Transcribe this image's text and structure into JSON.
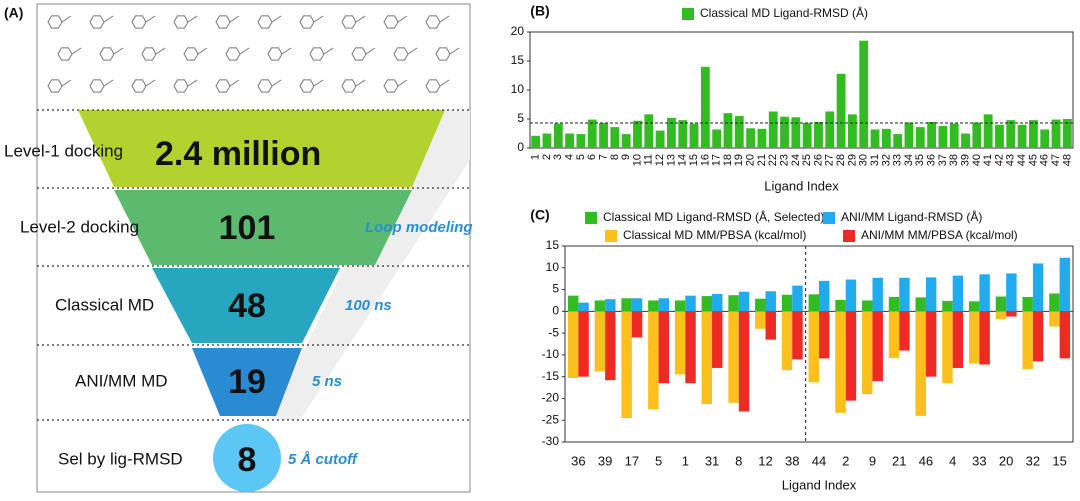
{
  "funnel": {
    "panel_label": "(A)",
    "stages": [
      {
        "label": "Level-1 docking",
        "count": "2.4 million"
      },
      {
        "label": "Level-2 docking",
        "count": "101",
        "note": "Loop modeling"
      },
      {
        "label": "Classical MD",
        "count": "48",
        "note": "100 ns"
      },
      {
        "label": "ANI/MM MD",
        "count": "19",
        "note": "5 ns"
      },
      {
        "label": "Sel by lig-RMSD",
        "count": "8",
        "note": "5 Å cutoff"
      }
    ]
  },
  "chart_data": [
    {
      "type": "bar",
      "title": "(B)",
      "x_label": "Ligand Index",
      "categories": [
        "1",
        "2",
        "3",
        "4",
        "5",
        "6",
        "7",
        "8",
        "9",
        "10",
        "11",
        "12",
        "13",
        "14",
        "15",
        "16",
        "17",
        "18",
        "19",
        "20",
        "21",
        "22",
        "23",
        "24",
        "25",
        "26",
        "27",
        "28",
        "29",
        "30",
        "31",
        "32",
        "33",
        "34",
        "35",
        "36",
        "37",
        "38",
        "39",
        "40",
        "41",
        "42",
        "43",
        "44",
        "45",
        "46",
        "47",
        "48"
      ],
      "series": [
        {
          "name": "Classical MD Ligand-RMSD (Å)",
          "color": "#33bb22",
          "values": [
            2.1,
            2.5,
            4.2,
            2.5,
            2.4,
            4.9,
            4.3,
            3.6,
            2.4,
            4.7,
            5.8,
            3.0,
            5.2,
            4.8,
            4.2,
            14.0,
            3.2,
            6.0,
            5.5,
            3.4,
            3.3,
            6.3,
            5.4,
            5.3,
            4.3,
            4.5,
            6.3,
            12.8,
            5.8,
            18.5,
            3.2,
            3.3,
            2.4,
            4.4,
            3.6,
            4.5,
            3.8,
            4.2,
            2.5,
            4.4,
            5.8,
            4.0,
            4.8,
            4.0,
            4.8,
            3.2,
            4.9,
            5.0
          ]
        }
      ],
      "reference_line": 4.3,
      "ylim": [
        0,
        20
      ],
      "yticks": [
        0,
        5,
        10,
        15,
        20
      ]
    },
    {
      "type": "bar",
      "title": "(C)",
      "x_label": "Ligand Index",
      "categories": [
        "36",
        "39",
        "17",
        "5",
        "1",
        "31",
        "8",
        "12",
        "38",
        "44",
        "2",
        "9",
        "21",
        "46",
        "4",
        "33",
        "20",
        "32",
        "15"
      ],
      "series": [
        {
          "name": "Classical MD Ligand-RMSD (Å, Selected)",
          "color": "#33bb22",
          "values": [
            3.6,
            2.5,
            3.0,
            2.5,
            2.5,
            3.5,
            3.7,
            2.9,
            3.8,
            3.9,
            2.6,
            2.5,
            3.3,
            3.2,
            2.4,
            2.3,
            3.4,
            3.3,
            4.1
          ]
        },
        {
          "name": "ANI/MM Ligand-RMSD (Å)",
          "color": "#22aaee",
          "values": [
            2.0,
            2.8,
            3.0,
            3.0,
            3.6,
            4.0,
            4.5,
            4.6,
            5.9,
            7.0,
            7.3,
            7.7,
            7.7,
            7.8,
            8.2,
            8.5,
            8.7,
            11.0,
            12.3
          ]
        },
        {
          "name": "Classical MD MM/PBSA (kcal/mol)",
          "color": "#fbbf1e",
          "values": [
            -15.3,
            -13.8,
            -24.5,
            -22.5,
            -14.5,
            -21.3,
            -21.0,
            -4.0,
            -13.5,
            -16.3,
            -23.3,
            -19.0,
            -10.7,
            -24.0,
            -16.5,
            -12.0,
            -1.8,
            -13.3,
            -3.5
          ]
        },
        {
          "name": "ANI/MM MM/PBSA (kcal/mol)",
          "color": "#ee2a24",
          "values": [
            -15.0,
            -15.8,
            -6.0,
            -16.5,
            -16.5,
            -13.0,
            -23.0,
            -6.5,
            -11.0,
            -10.8,
            -20.5,
            -16.0,
            -9.0,
            -15.0,
            -13.0,
            -12.2,
            -1.2,
            -11.5,
            -10.8
          ]
        }
      ],
      "ylim": [
        -30,
        15
      ],
      "yticks": [
        -30,
        -25,
        -20,
        -15,
        -10,
        -5,
        0,
        5,
        10,
        15
      ]
    }
  ]
}
